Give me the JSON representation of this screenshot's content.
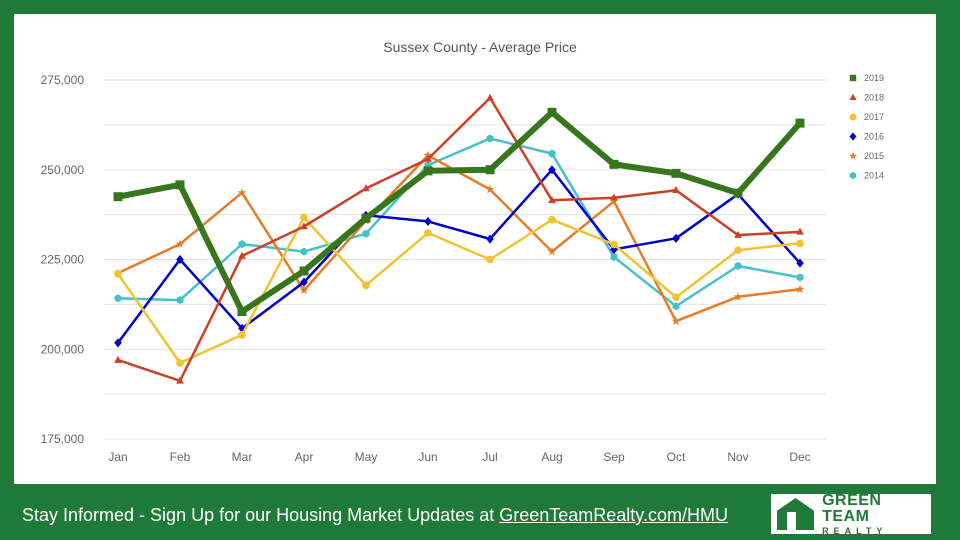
{
  "chart_data": {
    "type": "line",
    "title": "Sussex County - Average Price",
    "xlabel": "",
    "ylabel": "",
    "categories": [
      "Jan",
      "Feb",
      "Mar",
      "Apr",
      "May",
      "Jun",
      "Jul",
      "Aug",
      "Sep",
      "Oct",
      "Nov",
      "Dec"
    ],
    "ylim": [
      175000,
      275000
    ],
    "yticks": [
      175000,
      200000,
      225000,
      250000,
      275000
    ],
    "ytick_labels": [
      "175,000",
      "200,000",
      "225,000",
      "250,000",
      "275,000"
    ],
    "grid": true,
    "legend_position": "right",
    "series": [
      {
        "name": "2019",
        "color": "#38761d",
        "marker": "square",
        "values": [
          242500,
          245800,
          210500,
          221800,
          236500,
          249700,
          250000,
          266000,
          251500,
          249000,
          243500,
          263000
        ]
      },
      {
        "name": "2018",
        "color": "#cc4125",
        "marker": "triangle",
        "values": [
          197000,
          191200,
          226000,
          234200,
          244800,
          253000,
          270000,
          241500,
          242200,
          244300,
          231800,
          232700
        ]
      },
      {
        "name": "2017",
        "color": "#f1c232",
        "marker": "circle",
        "values": [
          221000,
          196200,
          204000,
          236700,
          217800,
          232400,
          225000,
          236100,
          229200,
          214500,
          227600,
          229500
        ]
      },
      {
        "name": "2016",
        "color": "#0000cc",
        "marker": "diamond",
        "values": [
          201800,
          225000,
          205800,
          218700,
          237300,
          235600,
          230700,
          250000,
          227800,
          230900,
          243200,
          224000
        ]
      },
      {
        "name": "2015",
        "color": "#e67c27",
        "marker": "star",
        "values": [
          221200,
          229300,
          243600,
          216400,
          235800,
          254000,
          244500,
          227200,
          241200,
          207800,
          214600,
          216700
        ]
      },
      {
        "name": "2014",
        "color": "#45c1c9",
        "marker": "hexagon",
        "values": [
          214200,
          213700,
          229300,
          227200,
          232200,
          251300,
          258700,
          254500,
          225700,
          212000,
          223200,
          220000
        ]
      }
    ]
  },
  "footer": {
    "text": "Stay Informed - Sign Up for our Housing Market Updates at ",
    "link_text": "GreenTeamRealty.com/HMU"
  },
  "logo": {
    "line1": "GREEN TEAM",
    "line2": "REALTY",
    "icon": "house-icon"
  },
  "colors": {
    "background": "#1f7a3a",
    "panel": "#ffffff"
  }
}
